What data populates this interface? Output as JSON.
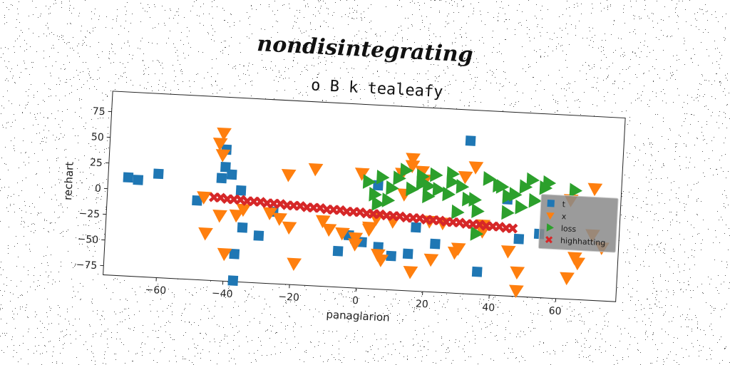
{
  "header": {
    "title": "nondisintegrating"
  },
  "chart_data": {
    "type": "scatter",
    "title": "o B k tealeafy",
    "xlabel": "panagiarion",
    "ylabel": "rechart",
    "xlim": [
      -76,
      78
    ],
    "ylim": [
      -84,
      95
    ],
    "xticks": [
      -60,
      -40,
      -20,
      0,
      20,
      40,
      60
    ],
    "yticks": [
      -75,
      -50,
      -25,
      0,
      25,
      50,
      75
    ],
    "xtick_labels": [
      "−60",
      "−40",
      "−20",
      "0",
      "20",
      "40",
      "60"
    ],
    "ytick_labels": [
      "−75",
      "−50",
      "−25",
      "0",
      "25",
      "50",
      "75"
    ],
    "legend_position": "center-right",
    "grid": false,
    "series": [
      {
        "name": "t",
        "marker": "square",
        "color": "#1f77b4",
        "points": [
          [
            -70,
            12
          ],
          [
            -67,
            10
          ],
          [
            -61,
            17
          ],
          [
            -49,
            -7
          ],
          [
            -42,
            16
          ],
          [
            -41,
            27
          ],
          [
            -41,
            44
          ],
          [
            -39,
            20
          ],
          [
            -37,
            -57
          ],
          [
            -37,
            -83
          ],
          [
            -36,
            5
          ],
          [
            -35,
            -31
          ],
          [
            -30,
            -38
          ],
          [
            -26,
            -14
          ],
          [
            -6,
            -49
          ],
          [
            -3,
            -33
          ],
          [
            -1,
            -36
          ],
          [
            1,
            -39
          ],
          [
            5,
            17
          ],
          [
            6,
            -43
          ],
          [
            10,
            -51
          ],
          [
            15,
            -48
          ],
          [
            17,
            -22
          ],
          [
            23,
            -37
          ],
          [
            32,
            65
          ],
          [
            36,
            -62
          ],
          [
            44,
            10
          ],
          [
            48,
            -28
          ],
          [
            54,
            -22
          ]
        ]
      },
      {
        "name": "x",
        "marker": "triangle-down",
        "color": "#ff7f0e",
        "points": [
          [
            -43,
            50
          ],
          [
            -42,
            60
          ],
          [
            -42,
            39
          ],
          [
            -46,
            -38
          ],
          [
            -42,
            -20
          ],
          [
            -37,
            -19
          ],
          [
            -40,
            -57
          ],
          [
            -35,
            -13
          ],
          [
            -27,
            -15
          ],
          [
            -24,
            -20
          ],
          [
            -22,
            23
          ],
          [
            -21,
            -28
          ],
          [
            -19,
            -63
          ],
          [
            -14,
            30
          ],
          [
            -11,
            -20
          ],
          [
            -9,
            -28
          ],
          [
            -1,
            -35
          ],
          [
            -1,
            -41
          ],
          [
            0,
            28
          ],
          [
            3,
            -24
          ],
          [
            3,
            -26
          ],
          [
            5,
            -15
          ],
          [
            6,
            -50
          ],
          [
            7,
            -55
          ],
          [
            10,
            -17
          ],
          [
            12,
            30
          ],
          [
            13,
            10
          ],
          [
            15,
            45
          ],
          [
            15,
            38
          ],
          [
            16,
            -65
          ],
          [
            18,
            33
          ],
          [
            19,
            25
          ],
          [
            21,
            -15
          ],
          [
            22,
            -52
          ],
          [
            29,
            -44
          ],
          [
            30,
            -40
          ],
          [
            31,
            30
          ],
          [
            34,
            40
          ],
          [
            37,
            -16
          ],
          [
            37,
            -22
          ],
          [
            45,
            -40
          ],
          [
            48,
            -60
          ],
          [
            48,
            -78
          ],
          [
            63,
            -63
          ],
          [
            63,
            13
          ],
          [
            65,
            -43
          ],
          [
            66,
            -48
          ],
          [
            70,
            25
          ],
          [
            70,
            -20
          ],
          [
            73,
            -32
          ],
          [
            -47,
            -3
          ],
          [
            -5,
            -31
          ],
          [
            25,
            -16
          ]
        ]
      },
      {
        "name": "loss",
        "marker": "triangle-right",
        "color": "#2ca02c",
        "points": [
          [
            2,
            20
          ],
          [
            4,
            8
          ],
          [
            6,
            25
          ],
          [
            8,
            3
          ],
          [
            9,
            15
          ],
          [
            11,
            25
          ],
          [
            13,
            33
          ],
          [
            15,
            15
          ],
          [
            18,
            28
          ],
          [
            18,
            21
          ],
          [
            20,
            19
          ],
          [
            20,
            9
          ],
          [
            22,
            30
          ],
          [
            23,
            16
          ],
          [
            26,
            12
          ],
          [
            27,
            32
          ],
          [
            27,
            24
          ],
          [
            29,
            -5
          ],
          [
            30,
            20
          ],
          [
            32,
            8
          ],
          [
            34,
            8
          ],
          [
            35,
            -3
          ],
          [
            35,
            -25
          ],
          [
            38,
            29
          ],
          [
            41,
            23
          ],
          [
            42,
            22
          ],
          [
            44,
            13
          ],
          [
            44,
            -3
          ],
          [
            46,
            15
          ],
          [
            48,
            3
          ],
          [
            49,
            23
          ],
          [
            51,
            30
          ],
          [
            52,
            10
          ],
          [
            55,
            23
          ],
          [
            56,
            28
          ],
          [
            64,
            22
          ],
          [
            5,
            -1
          ]
        ]
      },
      {
        "name": "highhatting",
        "marker": "x",
        "color": "#d62728",
        "points": [
          [
            -44,
            -3
          ],
          [
            -42,
            -3
          ],
          [
            -40,
            -4
          ],
          [
            -38,
            -4
          ],
          [
            -36,
            -4
          ],
          [
            -34,
            -5
          ],
          [
            -32,
            -5
          ],
          [
            -30,
            -5
          ],
          [
            -28,
            -6
          ],
          [
            -26,
            -6
          ],
          [
            -24,
            -6
          ],
          [
            -22,
            -7
          ],
          [
            -20,
            -7
          ],
          [
            -18,
            -7
          ],
          [
            -16,
            -8
          ],
          [
            -14,
            -8
          ],
          [
            -12,
            -8
          ],
          [
            -10,
            -9
          ],
          [
            -8,
            -9
          ],
          [
            -6,
            -9
          ],
          [
            -4,
            -10
          ],
          [
            -2,
            -10
          ],
          [
            0,
            -10
          ],
          [
            2,
            -11
          ],
          [
            4,
            -11
          ],
          [
            6,
            -11
          ],
          [
            8,
            -12
          ],
          [
            10,
            -12
          ],
          [
            12,
            -12
          ],
          [
            14,
            -13
          ],
          [
            16,
            -13
          ],
          [
            18,
            -13
          ],
          [
            20,
            -14
          ],
          [
            22,
            -14
          ],
          [
            24,
            -14
          ],
          [
            26,
            -15
          ],
          [
            28,
            -15
          ],
          [
            30,
            -15
          ],
          [
            32,
            -16
          ],
          [
            34,
            -16
          ],
          [
            36,
            -16
          ],
          [
            38,
            -17
          ],
          [
            40,
            -17
          ],
          [
            42,
            -17
          ],
          [
            44,
            -18
          ],
          [
            46,
            -18
          ]
        ]
      }
    ]
  }
}
